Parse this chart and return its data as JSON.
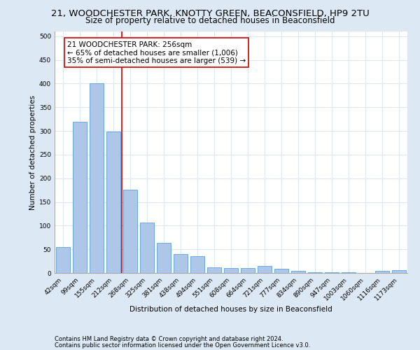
{
  "title": "21, WOODCHESTER PARK, KNOTTY GREEN, BEACONSFIELD, HP9 2TU",
  "subtitle": "Size of property relative to detached houses in Beaconsfield",
  "xlabel": "Distribution of detached houses by size in Beaconsfield",
  "ylabel": "Number of detached properties",
  "footnote1": "Contains HM Land Registry data © Crown copyright and database right 2024.",
  "footnote2": "Contains public sector information licensed under the Open Government Licence v3.0.",
  "categories": [
    "42sqm",
    "99sqm",
    "155sqm",
    "212sqm",
    "268sqm",
    "325sqm",
    "381sqm",
    "438sqm",
    "494sqm",
    "551sqm",
    "608sqm",
    "664sqm",
    "721sqm",
    "777sqm",
    "834sqm",
    "890sqm",
    "947sqm",
    "1003sqm",
    "1060sqm",
    "1116sqm",
    "1173sqm"
  ],
  "values": [
    54,
    320,
    400,
    298,
    176,
    107,
    64,
    40,
    36,
    12,
    11,
    11,
    15,
    9,
    5,
    2,
    1,
    1,
    0,
    5,
    6
  ],
  "bar_color": "#aec6e8",
  "bar_edgecolor": "#5a9fd4",
  "vline_color": "#cc0000",
  "annotation_text": "21 WOODCHESTER PARK: 256sqm\n← 65% of detached houses are smaller (1,006)\n35% of semi-detached houses are larger (539) →",
  "ylim_max": 510,
  "background_color": "#dce9f5",
  "plot_background": "#ffffff",
  "grid_color": "#dce9f5",
  "title_fontsize": 9.5,
  "subtitle_fontsize": 8.5,
  "axis_label_fontsize": 7.5,
  "tick_fontsize": 6.5,
  "annotation_fontsize": 7.5,
  "footnote_fontsize": 6.0,
  "yticks": [
    0,
    50,
    100,
    150,
    200,
    250,
    300,
    350,
    400,
    450,
    500
  ],
  "vline_bar_index": 4
}
